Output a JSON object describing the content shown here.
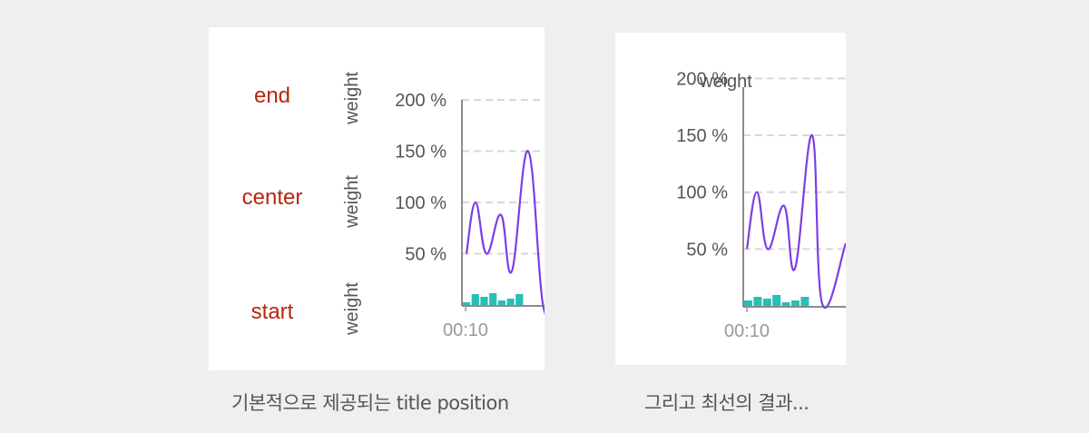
{
  "captions": {
    "left": "기본적으로 제공되는 title position",
    "right": "그리고 최선의 결과..."
  },
  "position_labels": [
    "end",
    "center",
    "start"
  ],
  "colors": {
    "label_red": "#b8250d",
    "line_purple": "#7b3fe4",
    "bar_teal": "#26c0b5",
    "grid": "#d8d8d8",
    "axis": "#666666"
  },
  "chart_data": [
    {
      "type": "line",
      "name": "default title positions",
      "ylabel": "weight",
      "ylabel_positions": [
        "end",
        "center",
        "start"
      ],
      "y_unit": "%",
      "y_ticks": [
        50,
        100,
        150,
        200
      ],
      "y_tick_labels": [
        "50 %",
        "100 %",
        "150 %",
        "200 %"
      ],
      "ylim": [
        0,
        220
      ],
      "x_tick_labels": [
        "00:10"
      ],
      "grid": true,
      "series": [
        {
          "type": "line",
          "values": [
            50,
            100,
            50,
            88,
            33,
            150,
            2,
            2
          ]
        },
        {
          "type": "bar",
          "values": [
            3,
            12,
            9,
            13,
            5,
            7,
            12,
            0
          ]
        }
      ]
    },
    {
      "type": "line",
      "name": "best result",
      "ylabel": "weight",
      "ylabel_position": "top",
      "y_unit": "%",
      "y_ticks": [
        50,
        100,
        150,
        200
      ],
      "y_tick_labels": [
        "50 %",
        "100 %",
        "150 %",
        "200 %"
      ],
      "ylim": [
        0,
        210
      ],
      "x_tick_labels": [
        "00:10"
      ],
      "grid": true,
      "series": [
        {
          "type": "line",
          "values": [
            50,
            100,
            50,
            88,
            33,
            150,
            2,
            55
          ]
        },
        {
          "type": "bar",
          "values": [
            6,
            10,
            8,
            12,
            4,
            6,
            10,
            0
          ]
        }
      ]
    }
  ]
}
